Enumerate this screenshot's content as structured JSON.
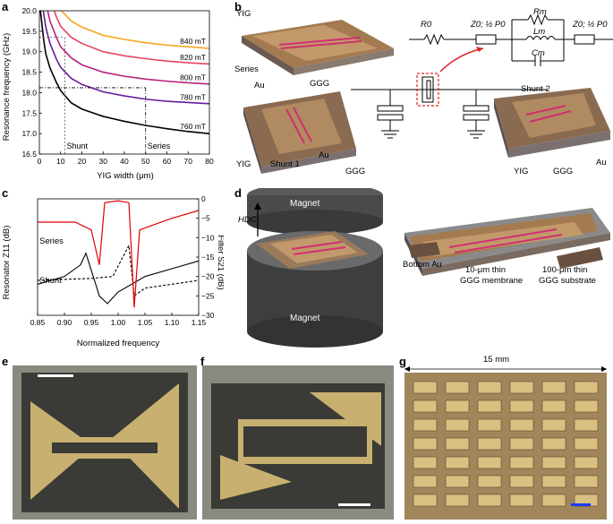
{
  "panels": {
    "a": "a",
    "b": "b",
    "c": "c",
    "d": "d",
    "e": "e",
    "f": "f",
    "g": "g"
  },
  "chart_data": [
    {
      "type": "line",
      "id": "a",
      "xlabel": "YIG width (μm)",
      "ylabel": "Resonance frequency (GHz)",
      "xlim": [
        0,
        80
      ],
      "ylim": [
        16.5,
        20.0
      ],
      "xticks": [
        "0",
        "10",
        "20",
        "30",
        "40",
        "50",
        "60",
        "70",
        "80"
      ],
      "yticks": [
        "16.5",
        "17.0",
        "17.5",
        "18.0",
        "18.5",
        "19.0",
        "19.5",
        "20.0"
      ],
      "series": [
        {
          "name": "840 mT",
          "color": "#f5a623",
          "x": [
            8,
            10,
            15,
            20,
            30,
            40,
            50,
            60,
            70,
            80
          ],
          "y": [
            20.25,
            20.02,
            19.75,
            19.6,
            19.4,
            19.3,
            19.22,
            19.16,
            19.12,
            19.08
          ]
        },
        {
          "name": "820 mT",
          "color": "#e8455a",
          "x": [
            5,
            8,
            10,
            15,
            20,
            30,
            40,
            50,
            60,
            70,
            80
          ],
          "y": [
            20.3,
            19.85,
            19.62,
            19.35,
            19.2,
            19.0,
            18.9,
            18.83,
            18.77,
            18.73,
            18.7
          ]
        },
        {
          "name": "800 mT",
          "color": "#b8207a",
          "x": [
            3,
            5,
            8,
            10,
            15,
            20,
            30,
            40,
            50,
            60,
            70,
            80
          ],
          "y": [
            20.2,
            19.75,
            19.35,
            19.12,
            18.85,
            18.68,
            18.5,
            18.4,
            18.33,
            18.28,
            18.24,
            18.21
          ]
        },
        {
          "name": "780 mT",
          "color": "#6a1b9a",
          "x": [
            1,
            3,
            5,
            8,
            10,
            15,
            20,
            30,
            40,
            50,
            60,
            70,
            80
          ],
          "y": [
            20.3,
            19.6,
            19.2,
            18.82,
            18.62,
            18.35,
            18.2,
            18.02,
            17.92,
            17.84,
            17.79,
            17.76,
            17.73
          ]
        },
        {
          "name": "760 mT",
          "color": "#000000",
          "x": [
            0.5,
            2,
            3,
            5,
            8,
            10,
            15,
            20,
            30,
            40,
            50,
            60,
            70,
            80
          ],
          "y": [
            20.0,
            19.3,
            18.95,
            18.6,
            18.25,
            18.05,
            17.75,
            17.6,
            17.42,
            17.3,
            17.2,
            17.12,
            17.05,
            17.0
          ]
        }
      ],
      "annotations": [
        {
          "text": "Shunt",
          "x": 12
        },
        {
          "text": "Series",
          "x": 50
        }
      ]
    },
    {
      "type": "line",
      "id": "c",
      "xlabel": "Normalized frequency",
      "ylabel": "Resonator Z11 (dB)",
      "ylabel_right": "Filter S21 (dB)",
      "xlim": [
        0.85,
        1.15
      ],
      "y2lim": [
        -30,
        0
      ],
      "xticks": [
        "0.85",
        "0.90",
        "0.95",
        "1.00",
        "1.05",
        "1.10",
        "1.15"
      ],
      "y2ticks": [
        "0",
        "−5",
        "−10",
        "−15",
        "−20",
        "−25",
        "−30"
      ],
      "series": [
        {
          "name": "Series",
          "color": "#000000",
          "dash": false
        },
        {
          "name": "Shunt",
          "color": "#000000",
          "dash": true
        },
        {
          "name": "Filter S21",
          "color": "#e00000",
          "dash": false
        }
      ]
    }
  ],
  "panel_b": {
    "labels": [
      "YIG",
      "Series",
      "Au",
      "GGG",
      "YIG",
      "Shunt 1",
      "Au",
      "GGG",
      "Shunt 2",
      "YIG",
      "GGG",
      "Au"
    ],
    "circuit": {
      "R0": "R0",
      "Z0": "Z0; ½ P0",
      "Rm": "Rm",
      "Lm": "Lm",
      "Cm": "Cm"
    }
  },
  "panel_d": {
    "magnet_top": "Magnet",
    "magnet_bottom": "Magnet",
    "field": "HDC",
    "labels": [
      "Bottom Au",
      "10-μm thin",
      "GGG membrane",
      "100-μm thin",
      "GGG substrate"
    ]
  },
  "panel_g": {
    "scale_label": "15 mm"
  },
  "colors": {
    "gold": "#c8b070",
    "substrate": "#7a5a3a",
    "magnet": "#4a4a4a"
  }
}
